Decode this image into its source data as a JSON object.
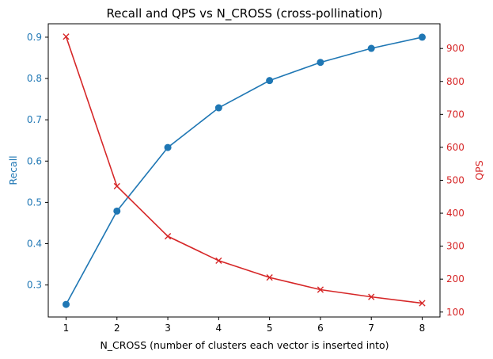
{
  "chart_data": {
    "type": "line",
    "title": "Recall and QPS vs N_CROSS (cross-pollination)",
    "xlabel": "N_CROSS (number of clusters each vector is inserted into)",
    "x": [
      1,
      2,
      3,
      4,
      5,
      6,
      7,
      8
    ],
    "xlim": [
      0.65,
      8.35
    ],
    "xticks": [
      "1",
      "2",
      "3",
      "4",
      "5",
      "6",
      "7",
      "8"
    ],
    "grid": false,
    "legend": "none",
    "y_left": {
      "label": "Recall",
      "color": "#1f77b4",
      "ylim": [
        0.2225,
        0.9325
      ],
      "ticks": [
        "0.3",
        "0.4",
        "0.5",
        "0.6",
        "0.7",
        "0.8",
        "0.9"
      ]
    },
    "y_right": {
      "label": "QPS",
      "color": "#d62728",
      "ylim": [
        85,
        975
      ],
      "ticks": [
        "100",
        "200",
        "300",
        "400",
        "500",
        "600",
        "700",
        "800",
        "900"
      ]
    },
    "series": [
      {
        "axis": "left",
        "marker": "circle",
        "color": "#1f77b4",
        "values": [
          0.253,
          0.479,
          0.633,
          0.729,
          0.795,
          0.839,
          0.873,
          0.9
        ]
      },
      {
        "axis": "right",
        "marker": "x",
        "color": "#d62728",
        "values": [
          936,
          482,
          330,
          256,
          205,
          168,
          146,
          127
        ]
      }
    ]
  }
}
